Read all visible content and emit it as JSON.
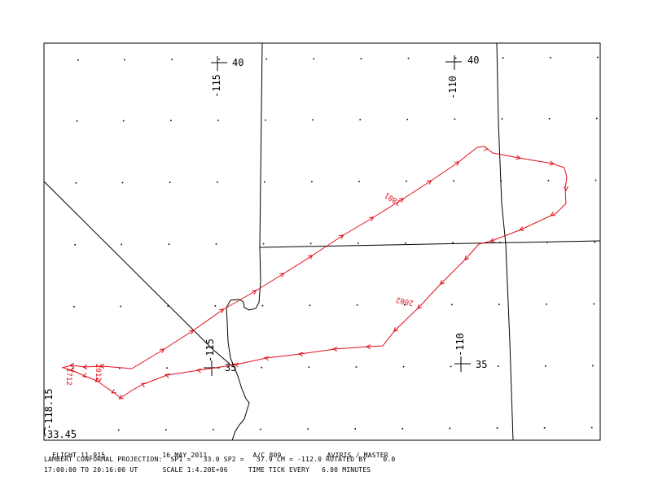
{
  "map": {
    "title": "FLIGHT 11-915",
    "date": "16 MAY 2011",
    "aircraft": "A/C 809",
    "project": "AVIRIS / MASTER",
    "projection_line": "LAMBERT CONFORMAL PROJECTION:  SP1 =   33.0 SP2 =   37.9 CM = -112.0 ROTATED BY    0.0",
    "time_line": "17:00:00 TO 20:16:00 UT      SCALE 1:4.20E+06     TIME TICK EVERY   6.00 MINUTES",
    "colors": {
      "track": "#e0101a",
      "boundary": "#000000",
      "frame": "#000000"
    },
    "grid_labels": {
      "lon_115_top": "-115",
      "lat_40_left": "40",
      "lon_110_top": "-110",
      "lat_40_right": "40",
      "lon_115_bottom": "-115",
      "lat_35_left": "35",
      "lon_110_bottom": "-110",
      "lat_35_right": "35",
      "corner_lon": "-118.15",
      "corner_lat": "33.45"
    },
    "track_labels": {
      "leg_a": "1801",
      "leg_b": "2002",
      "west_a": "1712",
      "west_b": "2012"
    }
  }
}
